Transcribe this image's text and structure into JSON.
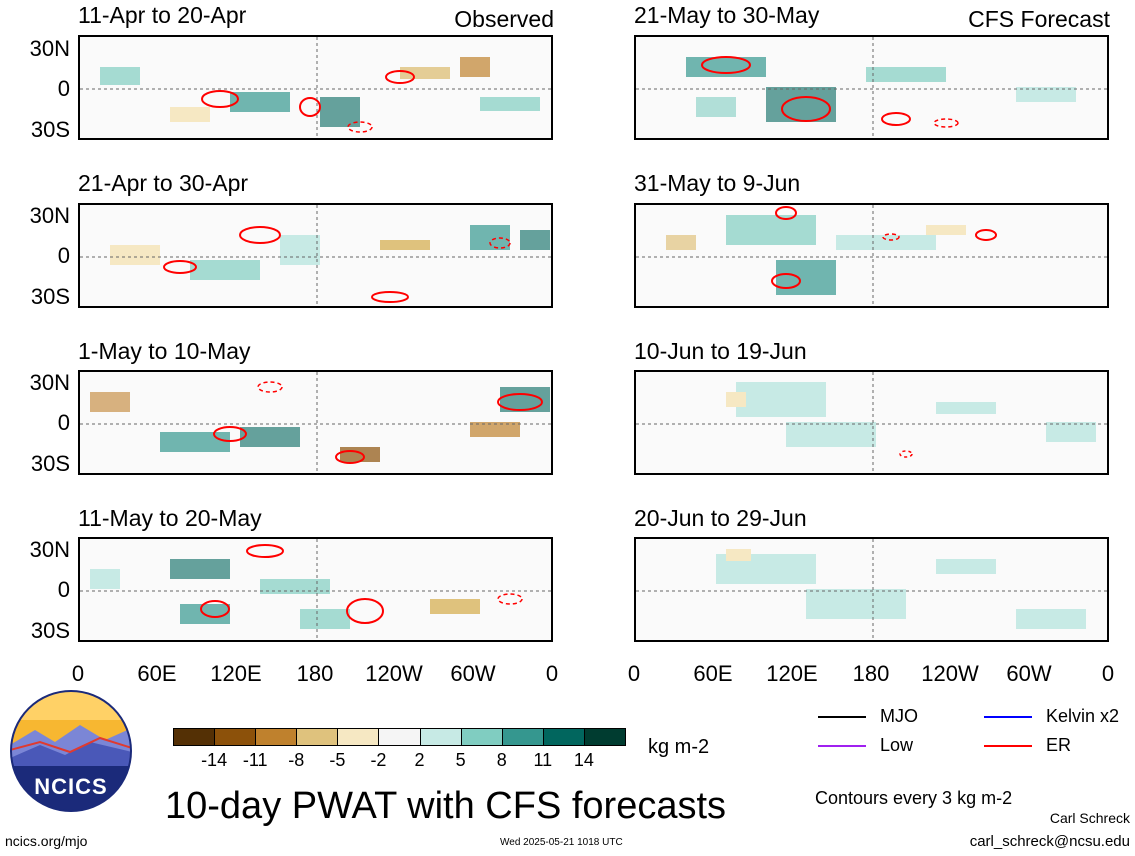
{
  "figure": {
    "main_title": "10-day PWAT with CFS forecasts",
    "units": "kg m-2",
    "contour_note": "Contours every 3 kg m-2",
    "observed_label": "Observed",
    "forecast_label": "CFS Forecast",
    "author": "Carl Schreck",
    "email": "carl_schreck@ncsu.edu",
    "website": "ncics.org/mjo",
    "timestamp": "Wed 2025-05-21 1018 UTC",
    "logo_text": "NCICS"
  },
  "panels": {
    "observed": [
      {
        "period": "11-Apr to 20-Apr"
      },
      {
        "period": "21-Apr to 30-Apr"
      },
      {
        "period": "1-May to 10-May"
      },
      {
        "period": "11-May to 20-May"
      }
    ],
    "forecast": [
      {
        "period": "21-May to 30-May"
      },
      {
        "period": "31-May to 9-Jun"
      },
      {
        "period": "10-Jun to 19-Jun"
      },
      {
        "period": "20-Jun to 29-Jun"
      }
    ]
  },
  "axes": {
    "lat_ticks": [
      "30N",
      "0",
      "30S"
    ],
    "lon_ticks": [
      "0",
      "60E",
      "120E",
      "180",
      "120W",
      "60W",
      "0"
    ]
  },
  "colorbar": {
    "ticks": [
      "-14",
      "-11",
      "-8",
      "-5",
      "-2",
      "2",
      "5",
      "8",
      "11",
      "14"
    ],
    "colors": [
      "#543005",
      "#8c510a",
      "#bf812d",
      "#dfc27d",
      "#f6e8c3",
      "#f5f5f5",
      "#c7eae5",
      "#80cdc1",
      "#35978f",
      "#01665e",
      "#003c30"
    ]
  },
  "legend": [
    {
      "label": "MJO",
      "color": "#000000"
    },
    {
      "label": "Kelvin x2",
      "color": "#0000ff"
    },
    {
      "label": "Low",
      "color": "#a020f0"
    },
    {
      "label": "ER",
      "color": "#ff0000"
    }
  ]
}
